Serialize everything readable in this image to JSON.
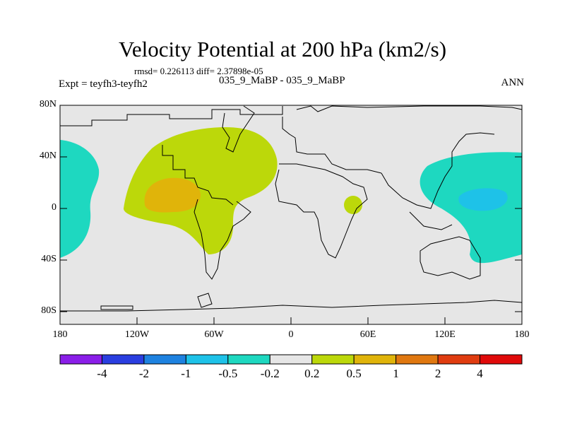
{
  "title": "Velocity Potential at 200 hPa (km2/s)",
  "stats": "rmsd= 0.226113 diff= 2.37898e-05",
  "expt": "Expt = teyfh3-teyfh2",
  "case": "035_9_MaBP - 035_9_MaBP",
  "season": "ANN",
  "y_ticks": [
    "80N",
    "40N",
    "0",
    "40S",
    "80S"
  ],
  "x_ticks": [
    "180",
    "120W",
    "60W",
    "0",
    "60E",
    "120E",
    "180"
  ],
  "colorbar": {
    "labels": [
      "-4",
      "-2",
      "-1",
      "-0.5",
      "-0.2",
      "0.2",
      "0.5",
      "1",
      "2",
      "4"
    ],
    "colors": [
      "#8a1ee8",
      "#2a3ee0",
      "#1e82e0",
      "#1ec2e8",
      "#1ed8c0",
      "#e6e6e6",
      "#bcd80a",
      "#e0b40a",
      "#e07810",
      "#e03c10",
      "#e00a0a"
    ]
  },
  "colors": {
    "ocean_neutral": "#e6e6e6",
    "positive_weak": "#bcd80a",
    "positive_mid": "#e0b40a",
    "negative_weak": "#1ed8c0",
    "negative_mid": "#1ec2e8"
  }
}
